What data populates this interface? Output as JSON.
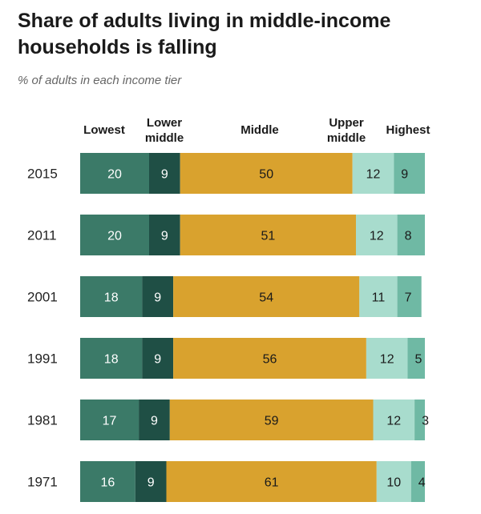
{
  "title": "Share of adults living in middle-income households is falling",
  "subtitle": "% of adults in each income tier",
  "chart_data": {
    "type": "bar",
    "orientation": "horizontal",
    "stacked": true,
    "categories": [
      "2015",
      "2011",
      "2001",
      "1991",
      "1981",
      "1971"
    ],
    "series": [
      {
        "name": "Lowest",
        "legend_lines": [
          "Lowest"
        ],
        "values": [
          20,
          20,
          18,
          18,
          17,
          16
        ],
        "color": "#3b7a68",
        "label_color": "#ffffff"
      },
      {
        "name": "Lower middle",
        "legend_lines": [
          "Lower",
          "middle"
        ],
        "values": [
          9,
          9,
          9,
          9,
          9,
          9
        ],
        "color": "#1f4f45",
        "label_color": "#ffffff"
      },
      {
        "name": "Middle",
        "legend_lines": [
          "Middle"
        ],
        "values": [
          50,
          51,
          54,
          56,
          59,
          61
        ],
        "color": "#d9a22e",
        "label_color": "#1a1a1a"
      },
      {
        "name": "Upper middle",
        "legend_lines": [
          "Upper",
          "middle"
        ],
        "values": [
          12,
          12,
          11,
          12,
          12,
          10
        ],
        "color": "#a8dccd",
        "label_color": "#1a1a1a"
      },
      {
        "name": "Highest",
        "legend_lines": [
          "Highest"
        ],
        "values": [
          9,
          8,
          7,
          5,
          3,
          4
        ],
        "color": "#6fb9a4",
        "label_color": "#1a1a1a"
      }
    ],
    "legend_position": "top",
    "grid": false,
    "xlim": [
      0,
      100
    ]
  }
}
